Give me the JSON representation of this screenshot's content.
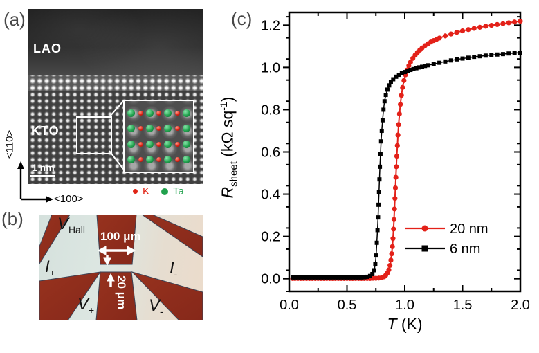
{
  "figure": {
    "panel_a": {
      "label": "(a)",
      "film_label": "LAO",
      "substrate_label": "KTO",
      "scale_bar": "1 nm",
      "axis_vertical": "<110>",
      "axis_horizontal": "<100>",
      "legend": [
        {
          "label": "K",
          "color": "#e02315",
          "size": 7
        },
        {
          "label": "Ta",
          "color": "#21a14d",
          "size": 10
        }
      ],
      "atom_colors": {
        "k": "#e02315",
        "ta": "#21a14d"
      },
      "inset": {
        "rows": 4,
        "atoms_per_row": 7
      }
    },
    "panel_b": {
      "label": "(b)",
      "labels": {
        "v_hall": {
          "main": "V",
          "sub": "Hall"
        },
        "i_plus": {
          "main": "I",
          "sub": "+"
        },
        "i_minus": {
          "main": "I",
          "sub": "-"
        },
        "v_plus": {
          "main": "V",
          "sub": "+"
        },
        "v_minus": {
          "main": "V",
          "sub": "-"
        },
        "width_label": "100 μm",
        "height_label": "20 μm"
      },
      "colors": {
        "film": "#8e2d1c",
        "film_edge": "#3c4254",
        "electrode_light": "#dde7e2"
      }
    },
    "panel_c": {
      "label": "(c)"
    }
  },
  "chart_data": {
    "type": "line",
    "title": "",
    "xlabel_parts": {
      "symbol": "T",
      "units": " (K)"
    },
    "ylabel_parts": {
      "symbol": "R",
      "sub": "sheet",
      "units_pre": " (kΩ sq",
      "sup": "-1",
      "units_post": ")"
    },
    "xlabel": "T (K)",
    "ylabel": "R_sheet (kOhm sq^-1)",
    "xlim": [
      0,
      2.0
    ],
    "ylim": [
      -0.06,
      1.26
    ],
    "x_tick_values": [
      0,
      0.5,
      1.0,
      1.5,
      2.0
    ],
    "x_tick_labels": [
      "0.0",
      "0.5",
      "1.0",
      "1.5",
      "2.0"
    ],
    "x_minor_step": 0.25,
    "y_tick_values": [
      0,
      0.2,
      0.4,
      0.6,
      0.8,
      1.0,
      1.2
    ],
    "y_tick_labels": [
      "0.0",
      "0.2",
      "0.4",
      "0.6",
      "0.8",
      "1.0",
      "1.2"
    ],
    "y_minor_step": 0.1,
    "grid": false,
    "legend_position": "right-center",
    "series": [
      {
        "name": "20 nm",
        "color": "#e32119",
        "marker": "circle",
        "points": [
          [
            0.03,
            0.001
          ],
          [
            0.05,
            0.001
          ],
          [
            0.075,
            0.001
          ],
          [
            0.1,
            0.001
          ],
          [
            0.125,
            0.001
          ],
          [
            0.15,
            0.001
          ],
          [
            0.175,
            0.001
          ],
          [
            0.2,
            0.001
          ],
          [
            0.225,
            0.001
          ],
          [
            0.25,
            0.001
          ],
          [
            0.275,
            0.001
          ],
          [
            0.3,
            0.001
          ],
          [
            0.325,
            0.001
          ],
          [
            0.35,
            0.001
          ],
          [
            0.375,
            0.001
          ],
          [
            0.4,
            0.001
          ],
          [
            0.425,
            0.001
          ],
          [
            0.45,
            0.001
          ],
          [
            0.475,
            0.001
          ],
          [
            0.5,
            0.001
          ],
          [
            0.525,
            0.001
          ],
          [
            0.55,
            0.001
          ],
          [
            0.575,
            0.001
          ],
          [
            0.6,
            0.001
          ],
          [
            0.625,
            0.001
          ],
          [
            0.65,
            0.001
          ],
          [
            0.675,
            0.001
          ],
          [
            0.7,
            0.001
          ],
          [
            0.725,
            0.002
          ],
          [
            0.75,
            0.002
          ],
          [
            0.775,
            0.003
          ],
          [
            0.8,
            0.005
          ],
          [
            0.82,
            0.009
          ],
          [
            0.835,
            0.016
          ],
          [
            0.85,
            0.027
          ],
          [
            0.862,
            0.042
          ],
          [
            0.872,
            0.063
          ],
          [
            0.88,
            0.088
          ],
          [
            0.887,
            0.118
          ],
          [
            0.893,
            0.152
          ],
          [
            0.898,
            0.19
          ],
          [
            0.903,
            0.235
          ],
          [
            0.907,
            0.28
          ],
          [
            0.911,
            0.33
          ],
          [
            0.915,
            0.38
          ],
          [
            0.919,
            0.43
          ],
          [
            0.923,
            0.48
          ],
          [
            0.927,
            0.53
          ],
          [
            0.931,
            0.58
          ],
          [
            0.936,
            0.63
          ],
          [
            0.941,
            0.68
          ],
          [
            0.947,
            0.73
          ],
          [
            0.954,
            0.78
          ],
          [
            0.962,
            0.825
          ],
          [
            0.971,
            0.868
          ],
          [
            0.981,
            0.905
          ],
          [
            0.993,
            0.938
          ],
          [
            1.006,
            0.965
          ],
          [
            1.02,
            0.988
          ],
          [
            1.035,
            1.008
          ],
          [
            1.05,
            1.025
          ],
          [
            1.07,
            1.043
          ],
          [
            1.09,
            1.058
          ],
          [
            1.11,
            1.071
          ],
          [
            1.13,
            1.082
          ],
          [
            1.15,
            1.092
          ],
          [
            1.175,
            1.103
          ],
          [
            1.2,
            1.112
          ],
          [
            1.225,
            1.12
          ],
          [
            1.25,
            1.127
          ],
          [
            1.275,
            1.133
          ],
          [
            1.3,
            1.139
          ],
          [
            1.35,
            1.149
          ],
          [
            1.4,
            1.158
          ],
          [
            1.45,
            1.166
          ],
          [
            1.5,
            1.173
          ],
          [
            1.55,
            1.179
          ],
          [
            1.6,
            1.185
          ],
          [
            1.65,
            1.19
          ],
          [
            1.7,
            1.195
          ],
          [
            1.75,
            1.199
          ],
          [
            1.8,
            1.203
          ],
          [
            1.85,
            1.207
          ],
          [
            1.9,
            1.211
          ],
          [
            1.95,
            1.215
          ],
          [
            2.0,
            1.219
          ]
        ]
      },
      {
        "name": "6 nm",
        "color": "#000000",
        "marker": "square",
        "points": [
          [
            0.03,
            0.006
          ],
          [
            0.05,
            0.006
          ],
          [
            0.075,
            0.006
          ],
          [
            0.1,
            0.006
          ],
          [
            0.125,
            0.006
          ],
          [
            0.15,
            0.006
          ],
          [
            0.175,
            0.006
          ],
          [
            0.2,
            0.006
          ],
          [
            0.225,
            0.006
          ],
          [
            0.25,
            0.006
          ],
          [
            0.275,
            0.006
          ],
          [
            0.3,
            0.006
          ],
          [
            0.325,
            0.006
          ],
          [
            0.35,
            0.006
          ],
          [
            0.375,
            0.006
          ],
          [
            0.4,
            0.006
          ],
          [
            0.425,
            0.006
          ],
          [
            0.45,
            0.006
          ],
          [
            0.475,
            0.006
          ],
          [
            0.5,
            0.006
          ],
          [
            0.525,
            0.006
          ],
          [
            0.55,
            0.006
          ],
          [
            0.575,
            0.006
          ],
          [
            0.6,
            0.006
          ],
          [
            0.625,
            0.006
          ],
          [
            0.65,
            0.007
          ],
          [
            0.675,
            0.009
          ],
          [
            0.7,
            0.013
          ],
          [
            0.72,
            0.022
          ],
          [
            0.735,
            0.04
          ],
          [
            0.745,
            0.07
          ],
          [
            0.752,
            0.11
          ],
          [
            0.758,
            0.17
          ],
          [
            0.764,
            0.23
          ],
          [
            0.769,
            0.29
          ],
          [
            0.773,
            0.35
          ],
          [
            0.777,
            0.41
          ],
          [
            0.781,
            0.47
          ],
          [
            0.785,
            0.53
          ],
          [
            0.79,
            0.59
          ],
          [
            0.795,
            0.65
          ],
          [
            0.801,
            0.7
          ],
          [
            0.808,
            0.75
          ],
          [
            0.816,
            0.8
          ],
          [
            0.825,
            0.84
          ],
          [
            0.836,
            0.87
          ],
          [
            0.85,
            0.895
          ],
          [
            0.865,
            0.915
          ],
          [
            0.88,
            0.93
          ],
          [
            0.9,
            0.944
          ],
          [
            0.925,
            0.956
          ],
          [
            0.95,
            0.965
          ],
          [
            0.975,
            0.972
          ],
          [
            1.0,
            0.978
          ],
          [
            1.025,
            0.983
          ],
          [
            1.05,
            0.988
          ],
          [
            1.075,
            0.992
          ],
          [
            1.1,
            0.996
          ],
          [
            1.125,
            1.0
          ],
          [
            1.15,
            1.003
          ],
          [
            1.175,
            1.007
          ],
          [
            1.2,
            1.01
          ],
          [
            1.25,
            1.016
          ],
          [
            1.3,
            1.022
          ],
          [
            1.35,
            1.028
          ],
          [
            1.4,
            1.033
          ],
          [
            1.45,
            1.038
          ],
          [
            1.5,
            1.042
          ],
          [
            1.55,
            1.046
          ],
          [
            1.6,
            1.05
          ],
          [
            1.65,
            1.053
          ],
          [
            1.7,
            1.056
          ],
          [
            1.75,
            1.059
          ],
          [
            1.8,
            1.061
          ],
          [
            1.85,
            1.063
          ],
          [
            1.9,
            1.066
          ],
          [
            1.95,
            1.068
          ],
          [
            2.0,
            1.07
          ]
        ]
      }
    ]
  }
}
